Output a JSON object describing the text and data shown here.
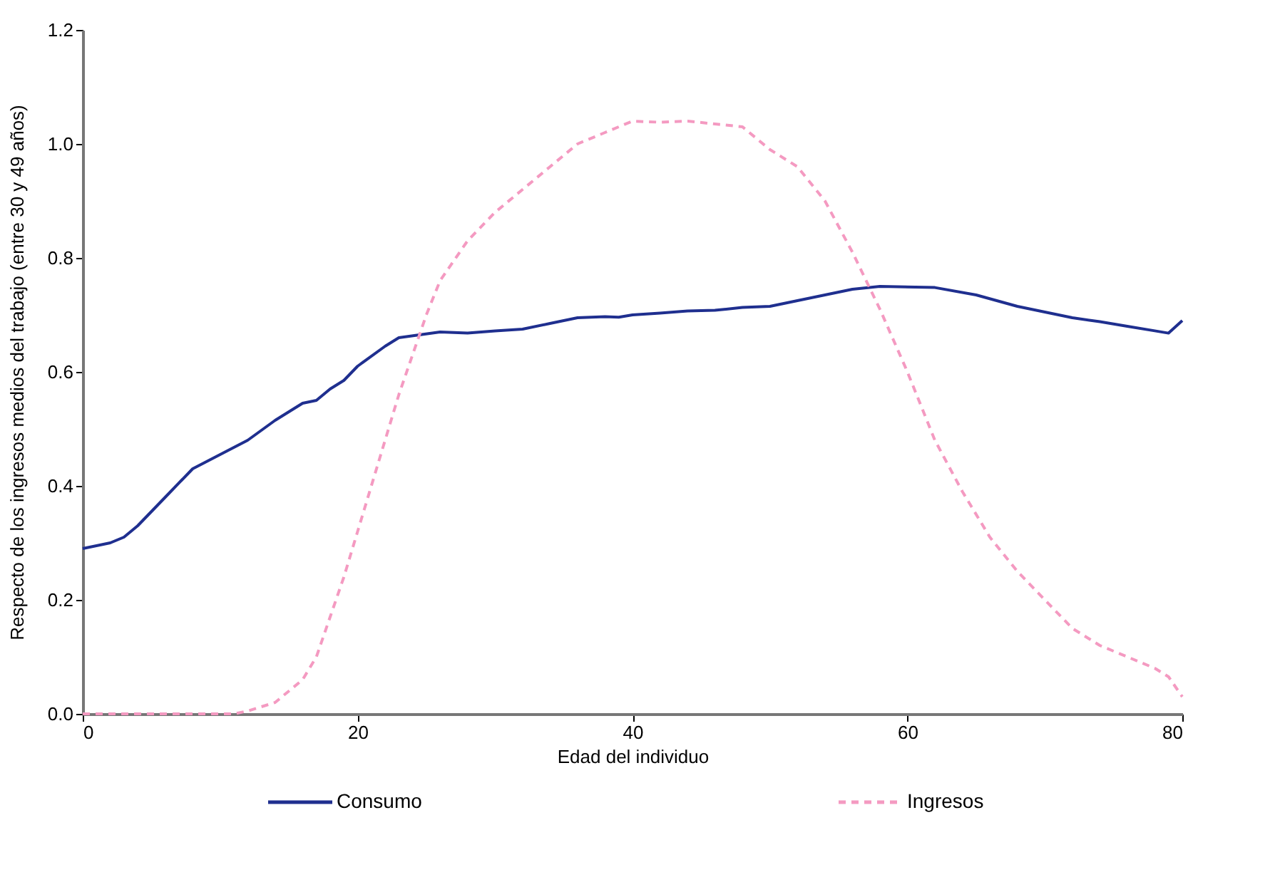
{
  "chart_data": {
    "type": "line",
    "xlabel": "Edad del individuo",
    "ylabel": "Respecto de los ingresos medios del trabajo (entre 30 y 49 años)",
    "xlim": [
      0,
      80
    ],
    "xticks": [
      0,
      20,
      40,
      60,
      80
    ],
    "ylim": [
      0,
      1.2
    ],
    "yticks": [
      {
        "value": 0,
        "label": "0.0"
      },
      0.2,
      0.4,
      0.6,
      0.8,
      {
        "value": 1,
        "label": "1.0"
      },
      1.2
    ],
    "grid": false,
    "legend": "bottom",
    "marker": "none",
    "series": [
      {
        "name": "Consumo",
        "color": "#1f2f8f",
        "line_style": "solid",
        "x": [
          0,
          2,
          3,
          4,
          6,
          8,
          10,
          12,
          14,
          16,
          17,
          18,
          19,
          20,
          22,
          23,
          26,
          28,
          30,
          32,
          34,
          36,
          38,
          39,
          40,
          42,
          44,
          46,
          48,
          50,
          52,
          54,
          56,
          58,
          62,
          65,
          68,
          70,
          72,
          74,
          76,
          78,
          79,
          80
        ],
        "values": [
          0.29,
          0.3,
          0.31,
          0.33,
          0.38,
          0.43,
          0.455,
          0.48,
          0.515,
          0.545,
          0.55,
          0.57,
          0.585,
          0.61,
          0.645,
          0.66,
          0.67,
          0.668,
          0.672,
          0.675,
          0.685,
          0.695,
          0.697,
          0.696,
          0.7,
          0.703,
          0.707,
          0.708,
          0.713,
          0.715,
          0.725,
          0.735,
          0.745,
          0.75,
          0.748,
          0.735,
          0.715,
          0.705,
          0.695,
          0.688,
          0.68,
          0.672,
          0.668,
          0.69
        ]
      },
      {
        "name": "Ingresos",
        "color": "#f49ac1",
        "line_style": "dashed",
        "x": [
          0,
          4,
          8,
          11,
          12,
          14,
          16,
          17,
          18,
          19,
          20,
          21,
          22,
          23,
          24,
          25,
          26,
          28,
          30,
          32,
          34,
          36,
          38,
          40,
          42,
          44,
          46,
          48,
          50,
          52,
          54,
          56,
          58,
          60,
          62,
          64,
          66,
          68,
          70,
          72,
          74,
          76,
          78,
          79,
          80
        ],
        "values": [
          0,
          0,
          0,
          0,
          0.005,
          0.02,
          0.06,
          0.1,
          0.17,
          0.24,
          0.32,
          0.4,
          0.48,
          0.56,
          0.63,
          0.7,
          0.76,
          0.83,
          0.88,
          0.92,
          0.96,
          1.0,
          1.02,
          1.04,
          1.038,
          1.04,
          1.035,
          1.03,
          0.99,
          0.96,
          0.9,
          0.81,
          0.71,
          0.6,
          0.48,
          0.39,
          0.31,
          0.25,
          0.2,
          0.15,
          0.12,
          0.1,
          0.08,
          0.065,
          0.03
        ]
      }
    ]
  }
}
